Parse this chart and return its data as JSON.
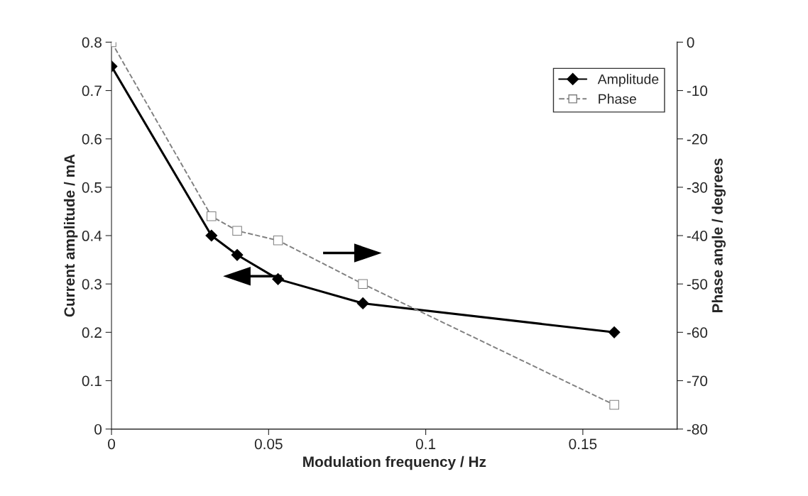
{
  "chart_data": {
    "type": "line",
    "xlabel": "Modulation frequency / Hz",
    "ylabel": "Current amplitude / mA",
    "y2label": "Phase angle / degrees",
    "x": [
      0,
      0.0318,
      0.04,
      0.053,
      0.08,
      0.16
    ],
    "series": [
      {
        "name": "Amplitude",
        "color": "#000000",
        "marker": "diamond",
        "line_style": "solid",
        "values": [
          0.75,
          0.4,
          0.36,
          0.31,
          0.26,
          0.2
        ]
      },
      {
        "name": "Phase",
        "color": "#808080",
        "marker": "square",
        "line_style": "dashed",
        "axis": "y2",
        "values": [
          0,
          -36,
          -39,
          -41,
          -50,
          -75
        ]
      }
    ],
    "xlim": [
      0,
      0.18
    ],
    "xticks": [
      0,
      0.05,
      0.1,
      0.15
    ],
    "ylim": [
      0,
      0.8
    ],
    "yticks": [
      0,
      0.1,
      0.2,
      0.3,
      0.4,
      0.5,
      0.6,
      0.7,
      0.8
    ],
    "y2lim": [
      -80,
      0
    ],
    "y2ticks": [
      -80,
      -70,
      -60,
      -50,
      -40,
      -30,
      -20,
      -10,
      0
    ],
    "legend": "top right",
    "grid": false
  }
}
